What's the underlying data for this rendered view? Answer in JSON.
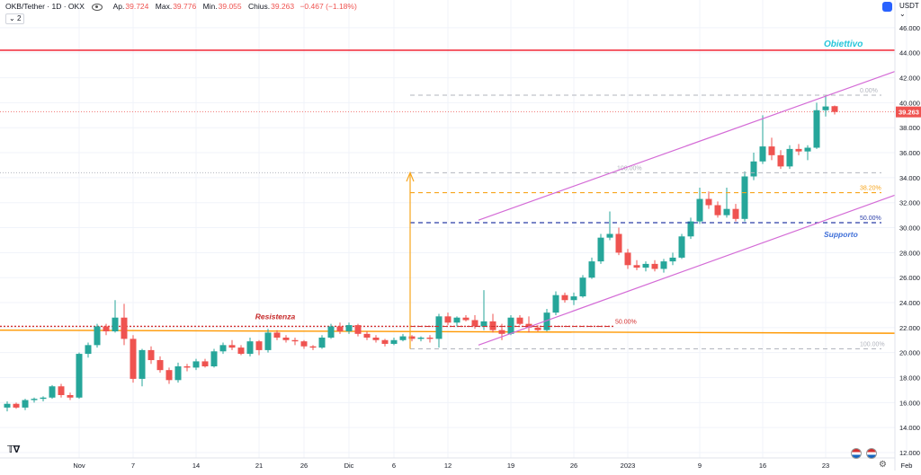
{
  "header": {
    "symbol": "OKB/Tether · 1D · OKX",
    "open_label": "Ap.",
    "open": "39.724",
    "high_label": "Max.",
    "high": "39.776",
    "low_label": "Min.",
    "low": "39.055",
    "close_label": "Chius.",
    "close": "39.263",
    "change": "−0.467 (−1.18%)",
    "sub_count": "2",
    "currency": "USDT"
  },
  "colors": {
    "up": "#26a69a",
    "down": "#ef5350",
    "channel": "#d46bd6",
    "target": "#f23645",
    "support_line": "#ff9800",
    "fib_blue": "#2a3ea8",
    "fib_orange": "#f7a51c",
    "fib_gray": "#b2b5be",
    "annotation": "#26c6da"
  },
  "chart_data": {
    "type": "candlestick",
    "price_axis": {
      "min": 12.0,
      "max": 47.0,
      "ticks": [
        "46.000",
        "44.000",
        "42.000",
        "40.000",
        "38.000",
        "36.000",
        "34.000",
        "32.000",
        "30.000",
        "28.000",
        "26.000",
        "24.000",
        "22.000",
        "20.000",
        "18.000",
        "16.000",
        "14.000",
        "12.000"
      ]
    },
    "current_price": "39.263",
    "x_labels": [
      {
        "label": "Nov",
        "date": "2022-11-01"
      },
      {
        "label": "7",
        "date": "2022-11-07"
      },
      {
        "label": "14",
        "date": "2022-11-14"
      },
      {
        "label": "21",
        "date": "2022-11-21"
      },
      {
        "label": "26",
        "date": "2022-11-26"
      },
      {
        "label": "Dic",
        "date": "2022-12-01"
      },
      {
        "label": "6",
        "date": "2022-12-06"
      },
      {
        "label": "12",
        "date": "2022-12-12"
      },
      {
        "label": "19",
        "date": "2022-12-19"
      },
      {
        "label": "26",
        "date": "2022-12-26"
      },
      {
        "label": "2023",
        "date": "2023-01-01"
      },
      {
        "label": "9",
        "date": "2023-01-09"
      },
      {
        "label": "16",
        "date": "2023-01-16"
      },
      {
        "label": "23",
        "date": "2023-01-23"
      },
      {
        "label": "Feb",
        "date": "2023-02-01"
      }
    ],
    "first_date": "2022-10-24",
    "candles": [
      [
        15.6,
        16.1,
        15.3,
        15.9
      ],
      [
        15.9,
        16.0,
        15.5,
        15.6
      ],
      [
        15.6,
        16.3,
        15.4,
        16.2
      ],
      [
        16.2,
        16.4,
        16.0,
        16.3
      ],
      [
        16.3,
        16.5,
        16.1,
        16.4
      ],
      [
        16.4,
        17.4,
        16.3,
        17.3
      ],
      [
        17.3,
        17.5,
        16.4,
        16.6
      ],
      [
        16.6,
        16.8,
        16.2,
        16.4
      ],
      [
        16.4,
        20.0,
        16.3,
        19.9
      ],
      [
        19.9,
        20.8,
        19.6,
        20.6
      ],
      [
        20.6,
        22.3,
        20.4,
        22.1
      ],
      [
        22.1,
        22.3,
        21.4,
        21.7
      ],
      [
        21.7,
        24.2,
        21.6,
        22.8
      ],
      [
        22.8,
        23.9,
        20.6,
        21.1
      ],
      [
        21.1,
        21.4,
        17.6,
        17.9
      ],
      [
        17.9,
        20.3,
        17.3,
        20.2
      ],
      [
        20.2,
        20.5,
        19.1,
        19.4
      ],
      [
        19.4,
        19.7,
        18.4,
        18.6
      ],
      [
        18.6,
        18.8,
        17.5,
        17.8
      ],
      [
        17.8,
        19.2,
        17.6,
        18.9
      ],
      [
        18.9,
        19.1,
        18.5,
        18.8
      ],
      [
        18.8,
        19.5,
        18.6,
        19.3
      ],
      [
        19.3,
        19.5,
        18.8,
        18.9
      ],
      [
        18.9,
        20.3,
        18.8,
        20.1
      ],
      [
        20.1,
        20.8,
        19.9,
        20.6
      ],
      [
        20.6,
        21.0,
        20.2,
        20.4
      ],
      [
        20.4,
        20.6,
        19.8,
        19.9
      ],
      [
        19.9,
        21.2,
        19.7,
        20.9
      ],
      [
        20.9,
        21.0,
        19.8,
        20.2
      ],
      [
        20.2,
        21.9,
        20.0,
        21.6
      ],
      [
        21.6,
        21.8,
        21.0,
        21.2
      ],
      [
        21.2,
        21.4,
        20.8,
        21.0
      ],
      [
        21.0,
        21.2,
        20.6,
        20.9
      ],
      [
        20.9,
        21.0,
        20.3,
        20.5
      ],
      [
        20.5,
        20.6,
        20.2,
        20.4
      ],
      [
        20.4,
        21.4,
        20.3,
        21.2
      ],
      [
        21.2,
        22.3,
        21.1,
        22.1
      ],
      [
        22.1,
        22.4,
        21.5,
        21.7
      ],
      [
        21.7,
        22.4,
        21.5,
        22.2
      ],
      [
        22.2,
        22.3,
        21.3,
        21.5
      ],
      [
        21.5,
        21.7,
        21.0,
        21.2
      ],
      [
        21.2,
        21.4,
        20.8,
        21.0
      ],
      [
        21.0,
        21.1,
        20.5,
        20.7
      ],
      [
        20.7,
        21.2,
        20.6,
        21.0
      ],
      [
        21.0,
        21.5,
        20.9,
        21.3
      ],
      [
        21.3,
        21.4,
        20.9,
        21.1
      ],
      [
        21.1,
        21.3,
        20.9,
        21.2
      ],
      [
        21.2,
        21.4,
        20.8,
        21.1
      ],
      [
        21.1,
        23.1,
        20.4,
        22.9
      ],
      [
        22.9,
        23.2,
        22.2,
        22.4
      ],
      [
        22.4,
        22.9,
        22.1,
        22.8
      ],
      [
        22.8,
        23.0,
        22.5,
        22.6
      ],
      [
        22.6,
        23.0,
        21.9,
        22.1
      ],
      [
        22.1,
        25.0,
        21.8,
        22.5
      ],
      [
        22.5,
        23.1,
        21.6,
        21.8
      ],
      [
        21.8,
        22.3,
        21.0,
        21.5
      ],
      [
        21.5,
        23.0,
        21.4,
        22.8
      ],
      [
        22.8,
        23.0,
        22.2,
        22.3
      ],
      [
        22.3,
        22.9,
        21.6,
        22.0
      ],
      [
        22.0,
        22.2,
        21.7,
        21.8
      ],
      [
        21.8,
        23.5,
        21.7,
        23.2
      ],
      [
        23.2,
        24.9,
        23.0,
        24.6
      ],
      [
        24.6,
        24.8,
        24.0,
        24.2
      ],
      [
        24.2,
        24.8,
        23.8,
        24.5
      ],
      [
        24.5,
        26.2,
        24.4,
        26.0
      ],
      [
        26.0,
        27.6,
        25.9,
        27.3
      ],
      [
        27.3,
        29.5,
        27.1,
        29.2
      ],
      [
        29.2,
        31.3,
        29.0,
        29.5
      ],
      [
        29.5,
        30.0,
        27.8,
        28.0
      ],
      [
        28.0,
        28.3,
        26.7,
        27.0
      ],
      [
        27.0,
        27.4,
        26.6,
        26.8
      ],
      [
        26.8,
        27.3,
        26.5,
        27.1
      ],
      [
        27.1,
        27.4,
        26.5,
        26.7
      ],
      [
        26.7,
        27.5,
        26.4,
        27.3
      ],
      [
        27.3,
        28.0,
        27.0,
        27.6
      ],
      [
        27.6,
        29.5,
        27.5,
        29.3
      ],
      [
        29.3,
        30.8,
        29.1,
        30.5
      ],
      [
        30.5,
        33.2,
        30.3,
        32.3
      ],
      [
        32.3,
        32.9,
        31.5,
        31.8
      ],
      [
        31.8,
        32.1,
        30.8,
        31.0
      ],
      [
        31.0,
        33.2,
        30.8,
        31.5
      ],
      [
        31.5,
        31.9,
        30.5,
        30.7
      ],
      [
        30.7,
        34.5,
        30.5,
        34.1
      ],
      [
        34.1,
        36.0,
        33.8,
        35.3
      ],
      [
        35.3,
        39.0,
        35.1,
        36.5
      ],
      [
        36.5,
        37.2,
        35.4,
        35.8
      ],
      [
        35.8,
        36.2,
        34.7,
        34.9
      ],
      [
        34.9,
        36.6,
        34.7,
        36.3
      ],
      [
        36.3,
        36.7,
        35.8,
        36.1
      ],
      [
        36.1,
        36.6,
        35.4,
        36.4
      ],
      [
        36.4,
        40.0,
        36.3,
        39.4
      ],
      [
        39.4,
        40.6,
        38.9,
        39.7
      ],
      [
        39.724,
        39.776,
        39.055,
        39.263
      ]
    ],
    "levels": {
      "target": 44.2,
      "resistance": 22.1,
      "horizontal_support": 21.8,
      "prior_high": 34.4
    },
    "fibonacci": [
      {
        "label": "0.00%",
        "value": 40.6
      },
      {
        "label": "100.00%",
        "value": 34.4
      },
      {
        "label": "38.20%",
        "value": 32.8
      },
      {
        "label": "50.00%",
        "value": 30.4
      },
      {
        "label": "50.00%",
        "value": 22.1
      },
      {
        "label": "100.00%",
        "value": 20.3
      }
    ],
    "annotations": {
      "target_label": "Obiettivo",
      "resistance_label": "Resistenza",
      "support_label": "Supporto"
    }
  }
}
